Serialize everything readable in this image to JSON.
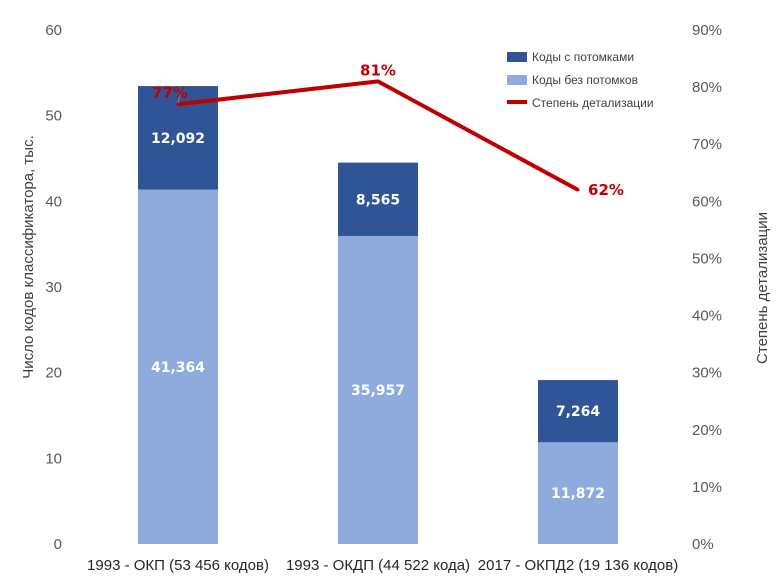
{
  "chart_data": {
    "type": "bar",
    "stacked": true,
    "categories": [
      "1993 - ОКП (53 456 кодов)",
      "1993 - ОКДП (44 522 кода)",
      "2017 - ОКПД2 (19 136 кодов)"
    ],
    "series": [
      {
        "name": "Коды без потомков",
        "values": [
          41.364,
          35.957,
          11.872
        ],
        "labels": [
          "41,364",
          "35,957",
          "11,872"
        ],
        "color": "#8faadc"
      },
      {
        "name": "Коды с потомками",
        "values": [
          12.092,
          8.565,
          7.264
        ],
        "labels": [
          "12,092",
          "8,565",
          "7,264"
        ],
        "color": "#2f5597"
      }
    ],
    "line_series": {
      "name": "Степень детализации",
      "values": [
        77,
        81,
        62
      ],
      "labels": [
        "77%",
        "81%",
        "62%"
      ],
      "color": "#c00000"
    },
    "ylabel": "Число кодов классификатора, тыс.",
    "y2label": "Степень детализации",
    "ylim": [
      0,
      60
    ],
    "y_ticks": [
      "0",
      "10",
      "20",
      "30",
      "40",
      "50",
      "60"
    ],
    "y2lim": [
      0,
      90
    ],
    "y2_ticks": [
      "0%",
      "10%",
      "20%",
      "30%",
      "40%",
      "50%",
      "60%",
      "70%",
      "80%",
      "90%"
    ],
    "legend_position": "top-right",
    "grid": false
  }
}
